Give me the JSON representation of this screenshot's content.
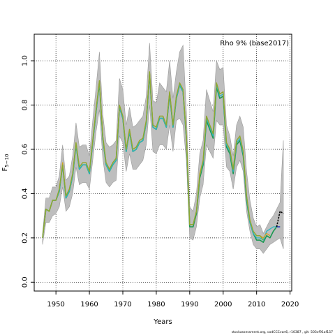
{
  "chart_data": {
    "type": "line",
    "title": "Rho 9% (base2017)",
    "xlabel": "Years",
    "ylabel": "F",
    "ylabel_subscript": "5−10",
    "xlim": [
      1943.5,
      2020.5
    ],
    "ylim": [
      -0.04,
      1.12
    ],
    "x_ticks": [
      1950,
      1960,
      1970,
      1980,
      1990,
      2000,
      2010,
      2020
    ],
    "y_ticks": [
      0.0,
      0.2,
      0.4,
      0.6,
      0.8,
      1.0
    ],
    "y_tick_labels": [
      "0.0",
      "0.2",
      "0.4",
      "0.6",
      "0.8",
      "1.0"
    ],
    "grid": true,
    "colors": {
      "band": "#bebebe",
      "band_edge": "#9a9a9a",
      "base": "#1a9850",
      "peel_1": "#2cb5c0",
      "peel_2": "#d4a020",
      "peel_3": "#8aa832",
      "recent": "#000000",
      "recent_alt": "#3333cc"
    },
    "band": {
      "x": [
        1946,
        1947,
        1948,
        1949,
        1950,
        1951,
        1952,
        1953,
        1954,
        1955,
        1956,
        1957,
        1958,
        1959,
        1960,
        1961,
        1962,
        1963,
        1964,
        1965,
        1966,
        1967,
        1968,
        1969,
        1970,
        1971,
        1972,
        1973,
        1974,
        1975,
        1976,
        1977,
        1978,
        1979,
        1980,
        1981,
        1982,
        1983,
        1984,
        1985,
        1986,
        1987,
        1988,
        1989,
        1990,
        1991,
        1992,
        1993,
        1994,
        1995,
        1996,
        1997,
        1998,
        1999,
        2000,
        2001,
        2002,
        2003,
        2004,
        2005,
        2006,
        2007,
        2008,
        2009,
        2010,
        2011,
        2012,
        2013,
        2014,
        2015,
        2016,
        2017,
        2018
      ],
      "lower": [
        0.17,
        0.27,
        0.27,
        0.3,
        0.31,
        0.34,
        0.43,
        0.32,
        0.34,
        0.4,
        0.52,
        0.44,
        0.45,
        0.45,
        0.42,
        0.55,
        0.68,
        0.78,
        0.56,
        0.45,
        0.43,
        0.45,
        0.46,
        0.66,
        0.63,
        0.5,
        0.58,
        0.51,
        0.51,
        0.53,
        0.55,
        0.62,
        0.8,
        0.59,
        0.58,
        0.62,
        0.62,
        0.6,
        0.71,
        0.59,
        0.73,
        0.74,
        0.71,
        0.55,
        0.2,
        0.19,
        0.25,
        0.38,
        0.44,
        0.62,
        0.59,
        0.56,
        0.73,
        0.71,
        0.71,
        0.52,
        0.5,
        0.42,
        0.52,
        0.55,
        0.5,
        0.32,
        0.23,
        0.17,
        0.15,
        0.15,
        0.13,
        0.15,
        0.17,
        0.18,
        0.19,
        0.2,
        0.15
      ],
      "upper": [
        0.22,
        0.38,
        0.38,
        0.43,
        0.43,
        0.48,
        0.62,
        0.46,
        0.48,
        0.57,
        0.72,
        0.61,
        0.62,
        0.62,
        0.57,
        0.73,
        0.88,
        1.04,
        0.76,
        0.63,
        0.61,
        0.62,
        0.64,
        0.92,
        0.87,
        0.71,
        0.79,
        0.7,
        0.71,
        0.73,
        0.75,
        0.84,
        1.08,
        0.82,
        0.81,
        0.9,
        0.88,
        0.86,
        1.0,
        0.83,
        0.95,
        1.04,
        1.07,
        0.77,
        0.34,
        0.32,
        0.4,
        0.58,
        0.64,
        0.87,
        0.82,
        0.77,
        1.0,
        0.96,
        0.97,
        0.71,
        0.66,
        0.57,
        0.71,
        0.75,
        0.7,
        0.5,
        0.37,
        0.29,
        0.25,
        0.26,
        0.22,
        0.25,
        0.28,
        0.3,
        0.33,
        0.36,
        0.64
      ]
    },
    "series": [
      {
        "x": [
          1946,
          1947,
          1948,
          1949,
          1950,
          1951,
          1952,
          1953,
          1954,
          1955,
          1956,
          1957,
          1958,
          1959,
          1960,
          1961,
          1962,
          1963,
          1964,
          1965,
          1966,
          1967,
          1968,
          1969,
          1970,
          1971,
          1972,
          1973,
          1974,
          1975,
          1976,
          1977,
          1978,
          1979,
          1980,
          1981,
          1982,
          1983,
          1984,
          1985,
          1986,
          1987,
          1988,
          1989,
          1990,
          1991,
          1992,
          1993,
          1994,
          1995,
          1996,
          1997,
          1998,
          1999,
          2000,
          2001,
          2002,
          2003,
          2004,
          2005,
          2006,
          2007,
          2008,
          2009,
          2010,
          2011,
          2012,
          2013,
          2014,
          2015,
          2016,
          2017
        ],
        "values": [
          0.2,
          0.33,
          0.32,
          0.37,
          0.37,
          0.41,
          0.53,
          0.38,
          0.41,
          0.48,
          0.62,
          0.51,
          0.53,
          0.53,
          0.49,
          0.63,
          0.77,
          0.9,
          0.65,
          0.53,
          0.5,
          0.53,
          0.55,
          0.79,
          0.74,
          0.59,
          0.68,
          0.59,
          0.6,
          0.63,
          0.64,
          0.72,
          0.94,
          0.7,
          0.69,
          0.74,
          0.74,
          0.7,
          0.85,
          0.7,
          0.83,
          0.89,
          0.86,
          0.65,
          0.25,
          0.25,
          0.31,
          0.47,
          0.53,
          0.73,
          0.69,
          0.65,
          0.88,
          0.83,
          0.84,
          0.61,
          0.58,
          0.49,
          0.62,
          0.64,
          0.57,
          0.37,
          0.27,
          0.22,
          0.19,
          0.19,
          0.18,
          0.21,
          0.2,
          0.23,
          0.25,
          0.25
        ],
        "color": "base",
        "width": 1.6
      },
      {
        "x": [
          1946,
          1947,
          1948,
          1949,
          1950,
          1951,
          1952,
          1953,
          1954,
          1955,
          1956,
          1957,
          1958,
          1959,
          1960,
          1961,
          1962,
          1963,
          1964,
          1965,
          1966,
          1967,
          1968,
          1969,
          1970,
          1971,
          1972,
          1973,
          1974,
          1975,
          1976,
          1977,
          1978,
          1979,
          1980,
          1981,
          1982,
          1983,
          1984,
          1985,
          1986,
          1987,
          1988,
          1989,
          1990,
          1991,
          1992,
          1993,
          1994,
          1995,
          1996,
          1997,
          1998,
          1999,
          2000,
          2001,
          2002,
          2003,
          2004,
          2005,
          2006,
          2007,
          2008,
          2009,
          2010,
          2011,
          2012,
          2013,
          2014,
          2015,
          2016
        ],
        "values": [
          0.2,
          0.33,
          0.32,
          0.37,
          0.37,
          0.41,
          0.53,
          0.38,
          0.41,
          0.48,
          0.62,
          0.51,
          0.53,
          0.53,
          0.49,
          0.63,
          0.77,
          0.9,
          0.65,
          0.53,
          0.5,
          0.53,
          0.55,
          0.79,
          0.74,
          0.59,
          0.68,
          0.59,
          0.6,
          0.63,
          0.64,
          0.72,
          0.94,
          0.7,
          0.69,
          0.74,
          0.74,
          0.7,
          0.85,
          0.7,
          0.83,
          0.89,
          0.86,
          0.65,
          0.26,
          0.26,
          0.32,
          0.48,
          0.54,
          0.74,
          0.7,
          0.66,
          0.89,
          0.84,
          0.85,
          0.62,
          0.59,
          0.5,
          0.63,
          0.65,
          0.58,
          0.38,
          0.27,
          0.22,
          0.2,
          0.2,
          0.19,
          0.23,
          0.24,
          0.25,
          0.25
        ],
        "color": "peel_1",
        "width": 1.3
      },
      {
        "x": [
          1946,
          1947,
          1948,
          1949,
          1950,
          1951,
          1952,
          1953,
          1954,
          1955,
          1956,
          1957,
          1958,
          1959,
          1960,
          1961,
          1962,
          1963,
          1964,
          1965,
          1966,
          1967,
          1968,
          1969,
          1970,
          1971,
          1972,
          1973,
          1974,
          1975,
          1976,
          1977,
          1978,
          1979,
          1980,
          1981,
          1982,
          1983,
          1984,
          1985,
          1986,
          1987,
          1988,
          1989,
          1990,
          1991,
          1992,
          1993,
          1994,
          1995,
          1996,
          1997,
          1998,
          1999,
          2000,
          2001,
          2002,
          2003,
          2004,
          2005,
          2006,
          2007,
          2008,
          2009,
          2010,
          2011,
          2012,
          2013,
          2014
        ],
        "values": [
          0.2,
          0.33,
          0.32,
          0.37,
          0.37,
          0.42,
          0.54,
          0.39,
          0.42,
          0.49,
          0.63,
          0.52,
          0.54,
          0.54,
          0.5,
          0.64,
          0.78,
          0.91,
          0.66,
          0.54,
          0.51,
          0.54,
          0.56,
          0.8,
          0.75,
          0.6,
          0.69,
          0.6,
          0.61,
          0.64,
          0.65,
          0.73,
          0.95,
          0.71,
          0.7,
          0.75,
          0.75,
          0.71,
          0.86,
          0.71,
          0.84,
          0.9,
          0.87,
          0.66,
          0.26,
          0.26,
          0.32,
          0.49,
          0.55,
          0.75,
          0.71,
          0.67,
          0.9,
          0.85,
          0.86,
          0.63,
          0.6,
          0.51,
          0.64,
          0.66,
          0.59,
          0.39,
          0.28,
          0.23,
          0.21,
          0.21,
          0.2,
          0.22,
          0.21
        ],
        "color": "peel_2",
        "width": 1.3
      },
      {
        "x": [
          1946,
          1947,
          1948,
          1949,
          1950,
          1951,
          1952,
          1953,
          1954,
          1955,
          1956,
          1957,
          1958,
          1959,
          1960,
          1961,
          1962,
          1963,
          1964,
          1965,
          1966,
          1967,
          1968,
          1969,
          1970,
          1971,
          1972,
          1973,
          1974,
          1975,
          1976,
          1977,
          1978,
          1979,
          1980,
          1981,
          1982,
          1983,
          1984,
          1985,
          1986,
          1987,
          1988,
          1989,
          1990,
          1991,
          1992,
          1993,
          1994,
          1995,
          1996,
          1997,
          1998,
          1999,
          2000,
          2001,
          2002,
          2003,
          2004,
          2005,
          2006,
          2007,
          2008,
          2009,
          2010,
          2011,
          2012
        ],
        "values": [
          0.2,
          0.33,
          0.32,
          0.37,
          0.37,
          0.42,
          0.53,
          0.39,
          0.42,
          0.49,
          0.63,
          0.52,
          0.54,
          0.54,
          0.5,
          0.64,
          0.78,
          0.91,
          0.66,
          0.54,
          0.51,
          0.54,
          0.56,
          0.8,
          0.75,
          0.6,
          0.69,
          0.6,
          0.61,
          0.64,
          0.65,
          0.73,
          0.95,
          0.71,
          0.7,
          0.75,
          0.75,
          0.71,
          0.86,
          0.71,
          0.84,
          0.9,
          0.87,
          0.66,
          0.26,
          0.26,
          0.32,
          0.48,
          0.55,
          0.75,
          0.71,
          0.67,
          0.9,
          0.85,
          0.86,
          0.63,
          0.6,
          0.51,
          0.64,
          0.66,
          0.59,
          0.39,
          0.28,
          0.23,
          0.21,
          0.21,
          0.19
        ],
        "color": "peel_3",
        "width": 1.3
      },
      {
        "x": [
          2016,
          2017
        ],
        "values": [
          0.25,
          0.25
        ],
        "color": "recent_alt",
        "width": 1.4
      },
      {
        "x": [
          2016,
          2017,
          2018
        ],
        "values": [
          0.25,
          0.32,
          0.31
        ],
        "color": "recent",
        "width": 1.6,
        "dashed": true
      }
    ]
  },
  "footer": "stockassessment.org, codCCCvan6, r10387 , git: 503cf91af157"
}
